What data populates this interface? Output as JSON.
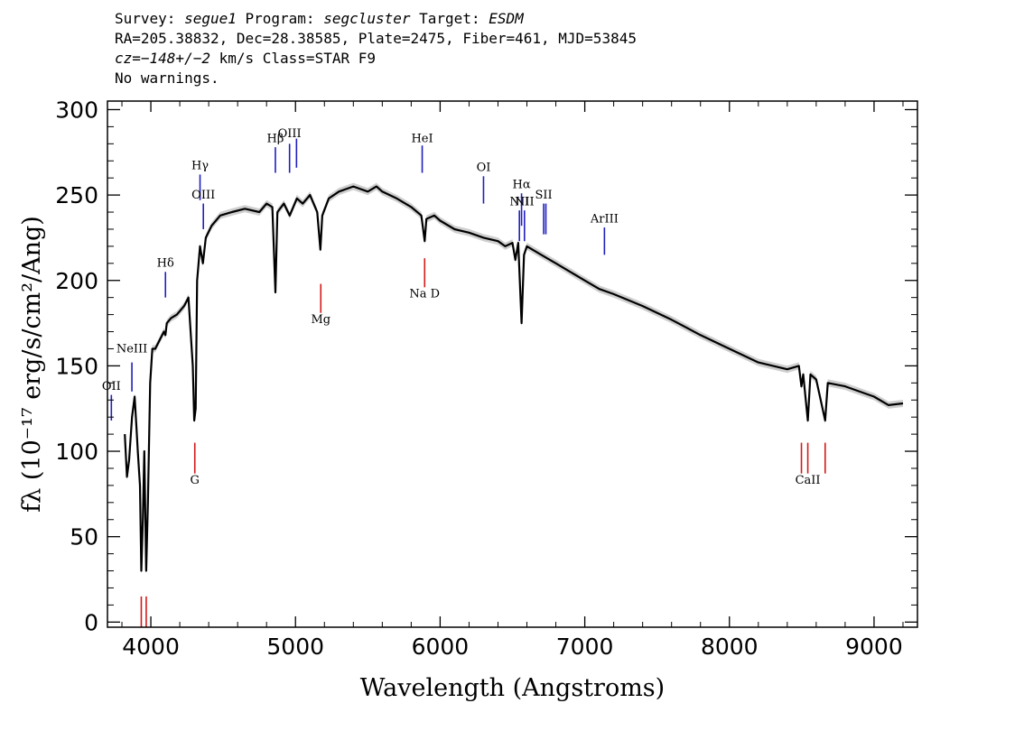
{
  "header": {
    "line1": {
      "survey_label": "Survey: ",
      "survey": "segue1",
      "program_label": " Program: ",
      "program": "segcluster",
      "target_label": " Target: ",
      "target": "ESDM"
    },
    "line2": "RA=205.38832, Dec=28.38585, Plate=2475, Fiber=461, MJD=53845",
    "line3": {
      "cz": "cz=−148+/−2",
      "rest": " km/s Class=STAR F9"
    },
    "line4": "No warnings."
  },
  "chart_data": {
    "type": "line",
    "xlabel": "Wavelength (Angstroms)",
    "ylabel": "fλ (10⁻¹⁷ erg/s/cm²/Ang)",
    "xlim": [
      3700,
      9300
    ],
    "ylim": [
      -3,
      305
    ],
    "xticks": [
      4000,
      5000,
      6000,
      7000,
      8000,
      9000
    ],
    "yticks": [
      0,
      50,
      100,
      150,
      200,
      250,
      300
    ],
    "xtick_labels": [
      "4000",
      "5000",
      "6000",
      "7000",
      "8000",
      "9000"
    ],
    "ytick_labels": [
      "0",
      "50",
      "100",
      "150",
      "200",
      "250",
      "300"
    ],
    "colors": {
      "spectrum": "#000000",
      "error": "#bbbbbb",
      "emission": "#1f1fbf",
      "absorption": "#d41a1a"
    },
    "series": [
      {
        "x": [
          3820,
          3835,
          3850,
          3870,
          3888,
          3900,
          3910,
          3925,
          3934,
          3945,
          3955,
          3962,
          3968,
          3980,
          3995,
          4010,
          4030,
          4060,
          4090,
          4101,
          4110,
          4140,
          4180,
          4230,
          4260,
          4290,
          4300,
          4310,
          4320,
          4340,
          4360,
          4380,
          4420,
          4480,
          4560,
          4650,
          4750,
          4800,
          4840,
          4861,
          4875,
          4920,
          4960,
          5010,
          5050,
          5100,
          5150,
          5172,
          5185,
          5230,
          5300,
          5400,
          5500,
          5560,
          5600,
          5700,
          5800,
          5870,
          5893,
          5905,
          5960,
          6000,
          6100,
          6200,
          6300,
          6400,
          6450,
          6500,
          6520,
          6540,
          6563,
          6580,
          6600,
          6700,
          6800,
          6900,
          7000,
          7100,
          7200,
          7400,
          7600,
          7800,
          8000,
          8200,
          8400,
          8480,
          8498,
          8510,
          8542,
          8560,
          8600,
          8662,
          8680,
          8800,
          9000,
          9100,
          9200
        ],
        "y": [
          110,
          85,
          95,
          120,
          132,
          115,
          100,
          80,
          30,
          60,
          100,
          60,
          30,
          70,
          140,
          160,
          160,
          165,
          170,
          168,
          175,
          178,
          180,
          185,
          190,
          150,
          118,
          125,
          200,
          220,
          210,
          225,
          232,
          238,
          240,
          242,
          240,
          245,
          243,
          193,
          240,
          245,
          238,
          248,
          245,
          250,
          240,
          218,
          238,
          248,
          252,
          255,
          252,
          255,
          252,
          248,
          243,
          238,
          223,
          236,
          238,
          235,
          230,
          228,
          225,
          223,
          220,
          222,
          212,
          222,
          175,
          215,
          220,
          215,
          210,
          205,
          200,
          195,
          192,
          185,
          177,
          168,
          160,
          152,
          148,
          150,
          138,
          145,
          118,
          145,
          142,
          118,
          140,
          138,
          132,
          127,
          128
        ]
      }
    ],
    "line_markers": [
      {
        "label": "OII",
        "x": 3727,
        "y_bottom": 118,
        "y_top": 133,
        "kind": "emission",
        "label_y": 136
      },
      {
        "label": "NeIII",
        "x": 3869,
        "y_bottom": 135,
        "y_top": 152,
        "kind": "emission",
        "label_y": 158
      },
      {
        "label": "Hδ",
        "x": 4101,
        "y_bottom": 190,
        "y_top": 205,
        "kind": "emission",
        "label_y": 208
      },
      {
        "label": "Hγ",
        "x": 4340,
        "y_bottom": 247,
        "y_top": 262,
        "kind": "emission",
        "label_y": 265
      },
      {
        "label": "OIII",
        "x": 4363,
        "y_bottom": 230,
        "y_top": 245,
        "kind": "emission",
        "label_y": 248
      },
      {
        "label": "Hβ",
        "x": 4861,
        "y_bottom": 263,
        "y_top": 278,
        "kind": "emission",
        "label_y": 281
      },
      {
        "label": "OIII",
        "x": 4959,
        "y_bottom": 263,
        "y_top": 280,
        "kind": "emission",
        "label_y": 284
      },
      {
        "label": "",
        "x": 5007,
        "y_bottom": 266,
        "y_top": 283,
        "kind": "emission",
        "label_y": 0
      },
      {
        "label": "HeI",
        "x": 5876,
        "y_bottom": 263,
        "y_top": 279,
        "kind": "emission",
        "label_y": 281
      },
      {
        "label": "OI",
        "x": 6300,
        "y_bottom": 245,
        "y_top": 261,
        "kind": "emission",
        "label_y": 264
      },
      {
        "label": "NII",
        "x": 6548,
        "y_bottom": 223,
        "y_top": 241,
        "kind": "emission",
        "label_y": 244
      },
      {
        "label": "Hα",
        "x": 6563,
        "y_bottom": 232,
        "y_top": 251,
        "kind": "emission",
        "label_y": 254
      },
      {
        "label": "NII",
        "x": 6583,
        "y_bottom": 223,
        "y_top": 241,
        "kind": "emission",
        "label_y": 244
      },
      {
        "label": "SII",
        "x": 6716,
        "y_bottom": 227,
        "y_top": 245,
        "kind": "emission",
        "label_y": 248
      },
      {
        "label": "",
        "x": 6731,
        "y_bottom": 227,
        "y_top": 245,
        "kind": "emission",
        "label_y": 0
      },
      {
        "label": "ArIII",
        "x": 7136,
        "y_bottom": 215,
        "y_top": 231,
        "kind": "emission",
        "label_y": 234
      },
      {
        "label": "",
        "x": 3934,
        "y_bottom": -3,
        "y_top": 15,
        "kind": "absorption",
        "label_y": 0
      },
      {
        "label": "",
        "x": 3968,
        "y_bottom": -3,
        "y_top": 15,
        "kind": "absorption",
        "label_y": 0
      },
      {
        "label": "G",
        "x": 4304,
        "y_bottom": 87,
        "y_top": 105,
        "kind": "absorption",
        "label_y": 81
      },
      {
        "label": "Mg",
        "x": 5175,
        "y_bottom": 181,
        "y_top": 198,
        "kind": "absorption",
        "label_y": 175
      },
      {
        "label": "Na D",
        "x": 5893,
        "y_bottom": 196,
        "y_top": 213,
        "kind": "absorption",
        "label_y": 190
      },
      {
        "label": "",
        "x": 8498,
        "y_bottom": 87,
        "y_top": 105,
        "kind": "absorption",
        "label_y": 0
      },
      {
        "label": "CaII",
        "x": 8542,
        "y_bottom": 87,
        "y_top": 105,
        "kind": "absorption",
        "label_y": 81
      },
      {
        "label": "",
        "x": 8662,
        "y_bottom": 87,
        "y_top": 105,
        "kind": "absorption",
        "label_y": 0
      }
    ]
  }
}
